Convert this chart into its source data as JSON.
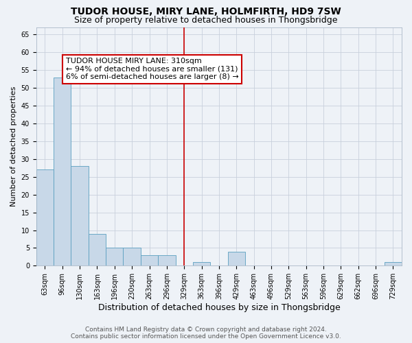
{
  "title": "TUDOR HOUSE, MIRY LANE, HOLMFIRTH, HD9 7SW",
  "subtitle": "Size of property relative to detached houses in Thongsbridge",
  "xlabel": "Distribution of detached houses by size in Thongsbridge",
  "ylabel": "Number of detached properties",
  "categories": [
    "63sqm",
    "96sqm",
    "130sqm",
    "163sqm",
    "196sqm",
    "230sqm",
    "263sqm",
    "296sqm",
    "329sqm",
    "363sqm",
    "396sqm",
    "429sqm",
    "463sqm",
    "496sqm",
    "529sqm",
    "563sqm",
    "596sqm",
    "629sqm",
    "662sqm",
    "696sqm",
    "729sqm"
  ],
  "values": [
    27,
    53,
    28,
    9,
    5,
    5,
    3,
    3,
    0,
    1,
    0,
    4,
    0,
    0,
    0,
    0,
    0,
    0,
    0,
    0,
    1
  ],
  "bar_color": "#c8d8e8",
  "bar_edge_color": "#5a9fc0",
  "vline_x": 8.0,
  "vline_color": "#cc0000",
  "annotation_text": "TUDOR HOUSE MIRY LANE: 310sqm\n← 94% of detached houses are smaller (131)\n6% of semi-detached houses are larger (8) →",
  "annotation_box_color": "white",
  "annotation_box_edge_color": "#cc0000",
  "ylim": [
    0,
    67
  ],
  "yticks": [
    0,
    5,
    10,
    15,
    20,
    25,
    30,
    35,
    40,
    45,
    50,
    55,
    60,
    65
  ],
  "footer_line1": "Contains HM Land Registry data © Crown copyright and database right 2024.",
  "footer_line2": "Contains public sector information licensed under the Open Government Licence v3.0.",
  "bg_color": "#eef2f7",
  "grid_color": "#c8d0dc",
  "title_fontsize": 10,
  "subtitle_fontsize": 9,
  "xlabel_fontsize": 9,
  "ylabel_fontsize": 8,
  "tick_fontsize": 7,
  "annotation_fontsize": 8,
  "footer_fontsize": 6.5
}
